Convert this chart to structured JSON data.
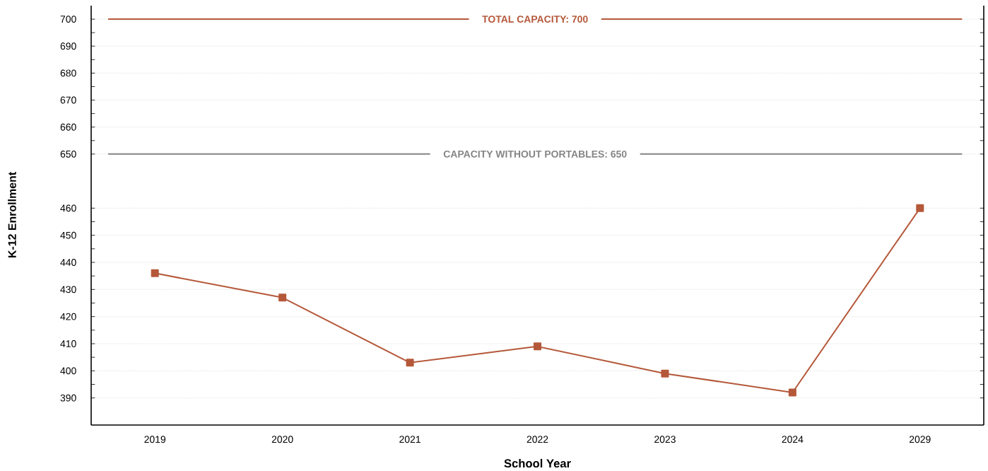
{
  "chart_data": [
    {
      "type": "line",
      "categories": [
        null,
        null,
        null,
        null,
        null,
        null,
        null
      ],
      "ylim": [
        640,
        705
      ],
      "yticks": [
        650,
        660,
        670,
        680,
        690,
        700
      ],
      "grid": "y",
      "tick_labels": "y",
      "ref_lines": [
        {
          "axis": "y",
          "value": 700,
          "label": "TOTAL CAPACITY: 700",
          "color": "#b5583a"
        },
        {
          "axis": "y",
          "value": 650,
          "label": "CAPACITY WITHOUT PORTABLES: 650",
          "color": "#858585"
        }
      ]
    },
    {
      "type": "line",
      "categories": [
        "2019",
        "2020",
        "2021",
        "2022",
        "2023",
        "2024",
        "2029"
      ],
      "ylim": [
        380,
        470
      ],
      "yticks": [
        390,
        400,
        410,
        420,
        430,
        440,
        450,
        460
      ],
      "xlabel": "School Year",
      "ylabel": "K-12 Enrollment",
      "grid": "y",
      "marker": "square",
      "series": [
        {
          "color": "#b5583a",
          "values": [
            436,
            427,
            403,
            409,
            399,
            392,
            460
          ]
        }
      ]
    }
  ]
}
